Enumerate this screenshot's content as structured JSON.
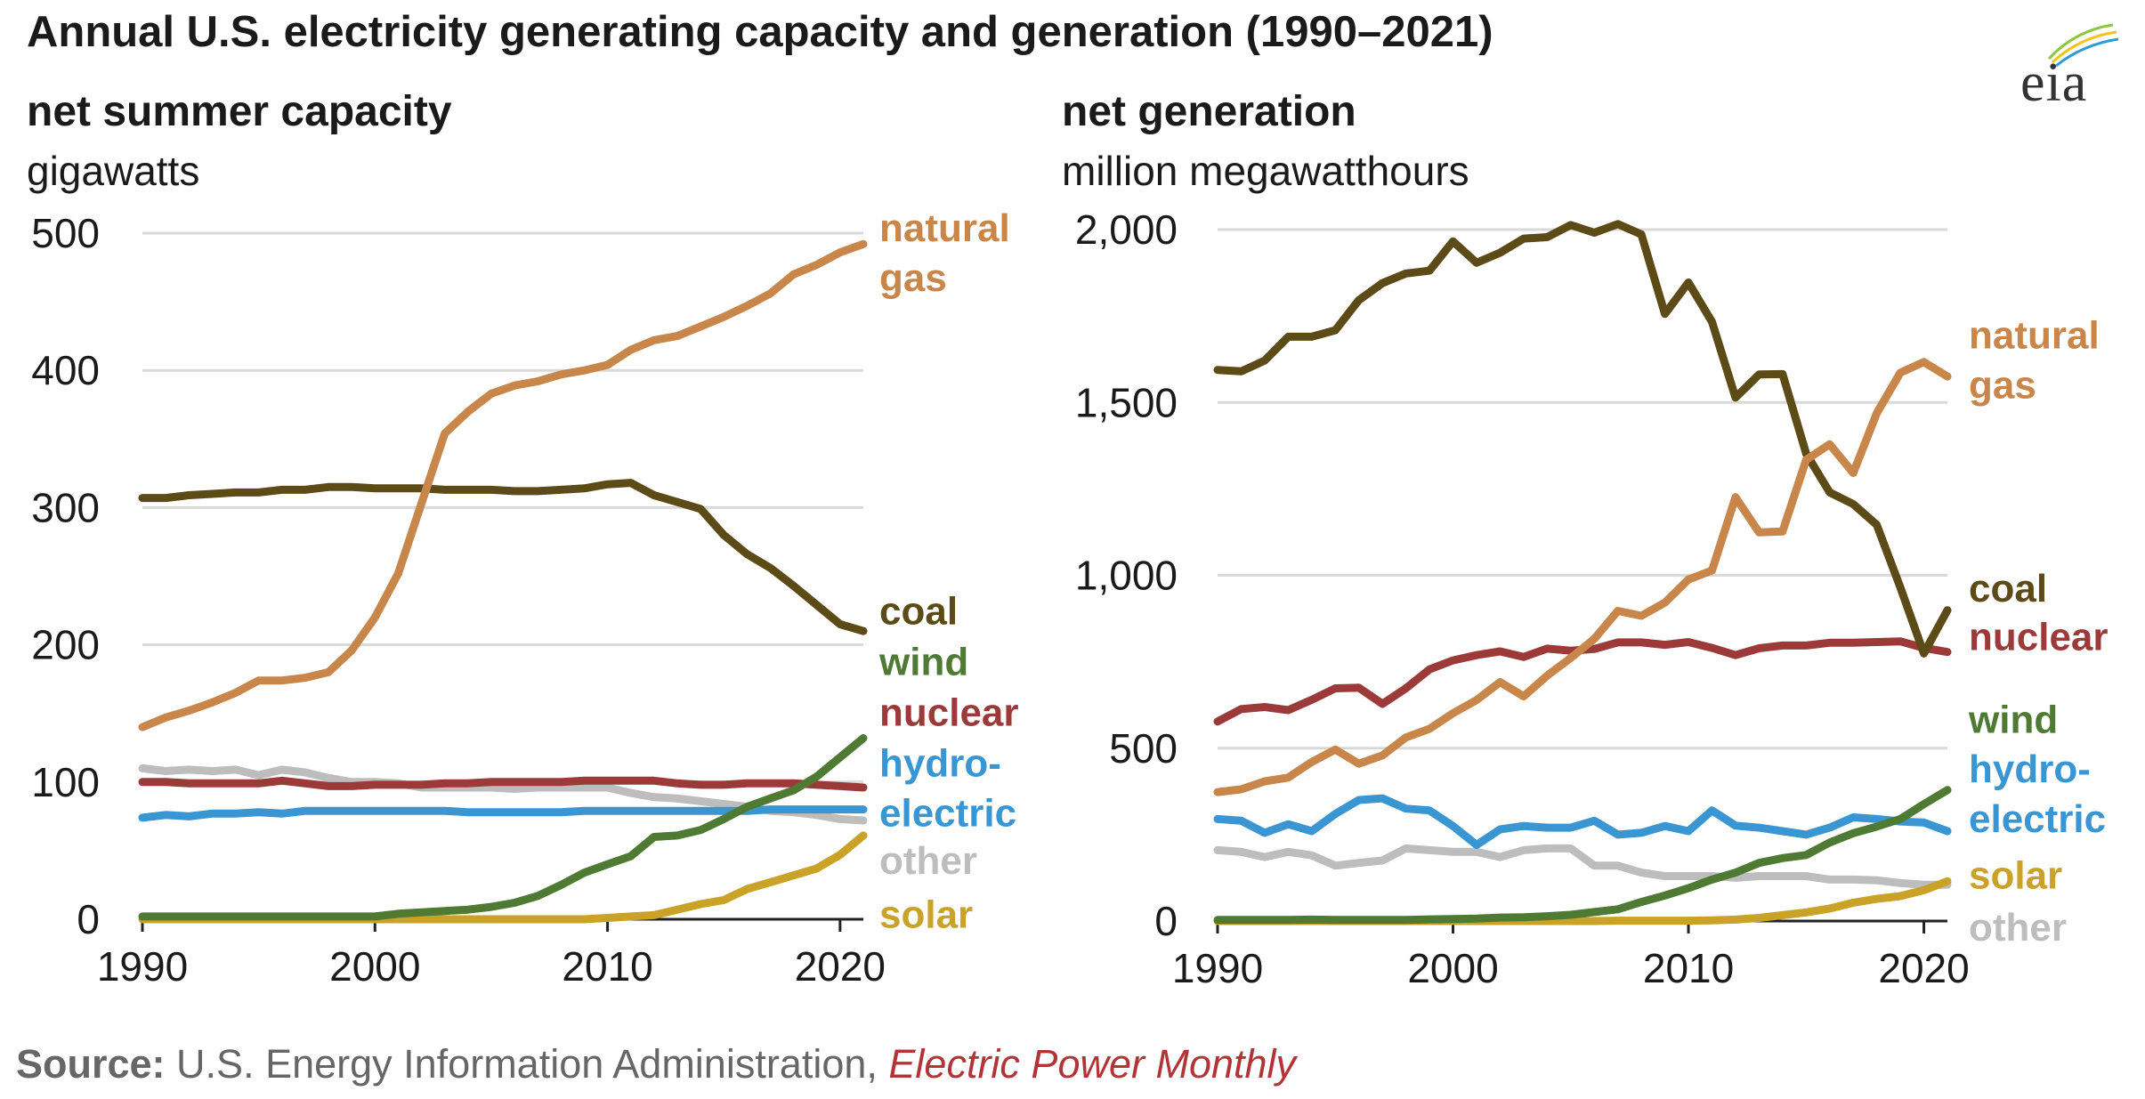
{
  "title": "Annual U.S. electricity generating capacity and generation (1990–2021)",
  "logo_text": "eia",
  "source": {
    "label": "Source:",
    "text": " U.S. Energy Information Administration, ",
    "publication": "Electric Power Monthly"
  },
  "colors": {
    "natural_gas": "#c8864a",
    "coal": "#5c4a17",
    "wind": "#4e7a33",
    "nuclear": "#9c3a3a",
    "hydro": "#3a96d2",
    "other": "#bdbdbd",
    "solar": "#c9a227",
    "grid": "#d9d9d9",
    "axis": "#222222"
  },
  "chart_data": [
    {
      "type": "line",
      "title": "net summer capacity",
      "ylabel": "gigawatts",
      "xlim": [
        1990,
        2021
      ],
      "ylim": [
        0,
        500
      ],
      "xticks": [
        1990,
        2000,
        2010,
        2020
      ],
      "xtick_labels": [
        "1990",
        "2000",
        "2010",
        "2020"
      ],
      "yticks": [
        0,
        100,
        200,
        300,
        400,
        500
      ],
      "ytick_labels": [
        "0",
        "100",
        "200",
        "300",
        "400",
        "500"
      ],
      "grid": true,
      "x": [
        1990,
        1991,
        1992,
        1993,
        1994,
        1995,
        1996,
        1997,
        1998,
        1999,
        2000,
        2001,
        2002,
        2003,
        2004,
        2005,
        2006,
        2007,
        2008,
        2009,
        2010,
        2011,
        2012,
        2013,
        2014,
        2015,
        2016,
        2017,
        2018,
        2019,
        2020,
        2021
      ],
      "series": [
        {
          "key": "other",
          "name": "other",
          "label_lines": [
            "other"
          ],
          "label_y": 42,
          "values": [
            110,
            108,
            109,
            108,
            109,
            105,
            109,
            107,
            103,
            100,
            100,
            99,
            96,
            96,
            96,
            96,
            95,
            96,
            96,
            96,
            96,
            92,
            89,
            88,
            86,
            84,
            82,
            79,
            78,
            76,
            73,
            72
          ]
        },
        {
          "key": "hydro",
          "name": "hydro-electric",
          "label_lines": [
            "hydro-",
            "electric"
          ],
          "label_y": 95,
          "values": [
            74,
            76,
            75,
            77,
            77,
            78,
            77,
            79,
            79,
            79,
            79,
            79,
            79,
            79,
            78,
            78,
            78,
            78,
            78,
            79,
            79,
            79,
            79,
            79,
            79,
            79,
            79,
            80,
            80,
            80,
            80,
            80
          ]
        },
        {
          "key": "nuclear",
          "name": "nuclear",
          "label_lines": [
            "nuclear"
          ],
          "label_y": 150,
          "values": [
            100,
            100,
            99,
            99,
            99,
            99,
            101,
            99,
            97,
            97,
            98,
            98,
            98,
            99,
            99,
            100,
            100,
            100,
            100,
            101,
            101,
            101,
            101,
            99,
            98,
            98,
            99,
            99,
            99,
            98,
            97,
            96
          ]
        },
        {
          "key": "solar",
          "name": "solar",
          "label_lines": [
            "solar"
          ],
          "label_y": 3,
          "values": [
            0,
            0,
            0,
            0,
            0,
            0,
            0,
            0,
            0,
            0,
            0,
            0,
            0,
            0,
            0,
            0,
            0,
            0,
            0,
            0,
            1,
            2,
            3,
            7,
            11,
            14,
            22,
            27,
            32,
            37,
            47,
            61
          ]
        },
        {
          "key": "wind",
          "name": "wind",
          "label_lines": [
            "wind"
          ],
          "label_y": 187,
          "values": [
            2,
            2,
            2,
            2,
            2,
            2,
            2,
            2,
            2,
            2,
            2,
            4,
            5,
            6,
            7,
            9,
            12,
            17,
            25,
            34,
            40,
            46,
            60,
            61,
            65,
            73,
            82,
            88,
            94,
            104,
            118,
            132
          ]
        },
        {
          "key": "coal",
          "name": "coal",
          "label_lines": [
            "coal"
          ],
          "label_y": 224,
          "values": [
            307,
            307,
            309,
            310,
            311,
            311,
            313,
            313,
            315,
            315,
            314,
            314,
            314,
            313,
            313,
            313,
            312,
            312,
            313,
            314,
            317,
            318,
            309,
            304,
            299,
            280,
            266,
            256,
            243,
            229,
            215,
            210
          ]
        },
        {
          "key": "natural_gas",
          "name": "natural gas",
          "label_lines": [
            "natural",
            "gas"
          ],
          "label_y": 485,
          "values": [
            140,
            147,
            152,
            158,
            165,
            174,
            174,
            176,
            180,
            196,
            220,
            252,
            303,
            354,
            370,
            383,
            389,
            392,
            397,
            400,
            404,
            415,
            422,
            425,
            432,
            439,
            447,
            456,
            470,
            477,
            486,
            492
          ]
        }
      ]
    },
    {
      "type": "line",
      "title": "net generation",
      "ylabel": "million megawatthours",
      "xlim": [
        1990,
        2021
      ],
      "ylim": [
        0,
        2000
      ],
      "xticks": [
        1990,
        2000,
        2010,
        2020
      ],
      "xtick_labels": [
        "1990",
        "2000",
        "2010",
        "2020"
      ],
      "yticks": [
        0,
        500,
        1000,
        1500,
        2000
      ],
      "ytick_labels": [
        "0",
        "500",
        "1,000",
        "1,500",
        "2,000"
      ],
      "grid": true,
      "x": [
        1990,
        1991,
        1992,
        1993,
        1994,
        1995,
        1996,
        1997,
        1998,
        1999,
        2000,
        2001,
        2002,
        2003,
        2004,
        2005,
        2006,
        2007,
        2008,
        2009,
        2010,
        2011,
        2012,
        2013,
        2014,
        2015,
        2016,
        2017,
        2018,
        2019,
        2020,
        2021
      ],
      "series": [
        {
          "key": "other",
          "name": "other",
          "label_lines": [
            "other"
          ],
          "label_y": -20,
          "values": [
            205,
            200,
            185,
            200,
            190,
            160,
            168,
            175,
            210,
            205,
            200,
            200,
            185,
            205,
            210,
            210,
            160,
            160,
            140,
            130,
            130,
            130,
            125,
            130,
            130,
            130,
            120,
            120,
            118,
            110,
            105,
            105
          ]
        },
        {
          "key": "hydro",
          "name": "hydro-electric",
          "label_lines": [
            "hydro-",
            "electric"
          ],
          "label_y": 365,
          "values": [
            295,
            290,
            255,
            280,
            260,
            310,
            350,
            355,
            325,
            320,
            275,
            220,
            265,
            275,
            270,
            270,
            290,
            250,
            255,
            275,
            260,
            320,
            276,
            270,
            260,
            250,
            270,
            300,
            295,
            288,
            285,
            260
          ]
        },
        {
          "key": "nuclear",
          "name": "nuclear",
          "label_lines": [
            "nuclear"
          ],
          "label_y": 820,
          "values": [
            577,
            613,
            619,
            610,
            640,
            673,
            675,
            628,
            673,
            728,
            754,
            769,
            780,
            764,
            788,
            782,
            787,
            806,
            806,
            799,
            807,
            790,
            769,
            789,
            797,
            797,
            805,
            805,
            807,
            809,
            790,
            778
          ]
        },
        {
          "key": "solar",
          "name": "solar",
          "label_lines": [
            "solar"
          ],
          "label_y": 130,
          "values": [
            0,
            0,
            0,
            0,
            0,
            0,
            0,
            0,
            0,
            0,
            0,
            0,
            0,
            0,
            0,
            0,
            0,
            1,
            1,
            1,
            1,
            2,
            4,
            9,
            17,
            25,
            36,
            53,
            64,
            72,
            89,
            115
          ]
        },
        {
          "key": "wind",
          "name": "wind",
          "label_lines": [
            "wind"
          ],
          "label_y": 580,
          "values": [
            3,
            3,
            3,
            3,
            4,
            3,
            3,
            3,
            3,
            5,
            6,
            7,
            10,
            11,
            14,
            18,
            26,
            34,
            55,
            74,
            95,
            120,
            140,
            168,
            182,
            191,
            227,
            254,
            273,
            295,
            338,
            379
          ]
        },
        {
          "key": "coal",
          "name": "coal",
          "label_lines": [
            "coal"
          ],
          "label_y": 960,
          "values": [
            1594,
            1590,
            1621,
            1690,
            1690,
            1709,
            1796,
            1845,
            1873,
            1881,
            1966,
            1904,
            1933,
            1974,
            1978,
            2013,
            1991,
            2016,
            1986,
            1756,
            1847,
            1733,
            1514,
            1581,
            1582,
            1352,
            1240,
            1206,
            1146,
            965,
            774,
            899
          ]
        },
        {
          "key": "natural_gas",
          "name": "natural gas",
          "label_lines": [
            "natural",
            "gas"
          ],
          "label_y": 1620,
          "values": [
            373,
            381,
            404,
            415,
            460,
            496,
            455,
            479,
            531,
            556,
            601,
            639,
            691,
            650,
            710,
            761,
            816,
            897,
            883,
            921,
            988,
            1014,
            1226,
            1124,
            1127,
            1334,
            1379,
            1296,
            1469,
            1586,
            1617,
            1575
          ]
        }
      ]
    }
  ]
}
